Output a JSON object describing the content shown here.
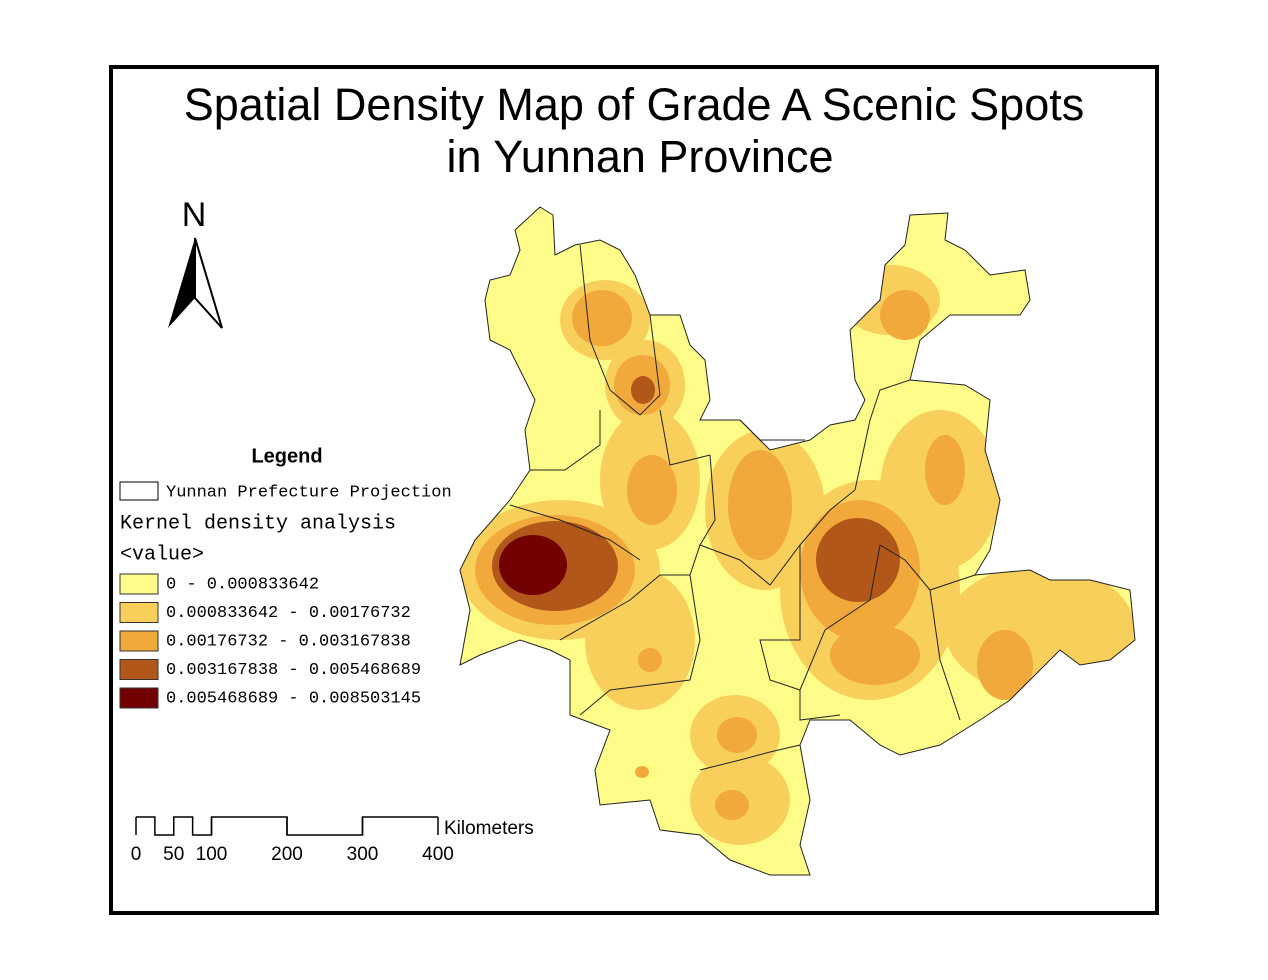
{
  "title": [
    "Spatial Density Map of Grade A Scenic Spots",
    "in Yunnan Province"
  ],
  "north_arrow": "N",
  "legend": {
    "title": "Legend",
    "boundary": "Yunnan Prefecture Projection",
    "layer": "Kernel density analysis",
    "field": "<value>",
    "classes": [
      {
        "label": "0 - 0.000833642",
        "color": "#fdfc88"
      },
      {
        "label": "0.000833642 - 0.00176732",
        "color": "#f9cf5c"
      },
      {
        "label": "0.00176732 - 0.003167838",
        "color": "#f0a93a"
      },
      {
        "label": "0.003167838 - 0.005468689",
        "color": "#b1571a"
      },
      {
        "label": "0.005468689 - 0.008503145",
        "color": "#730000"
      }
    ]
  },
  "scale_bar": {
    "unit": "Kilometers",
    "ticks": [
      0,
      50,
      100,
      200,
      300,
      400
    ]
  }
}
